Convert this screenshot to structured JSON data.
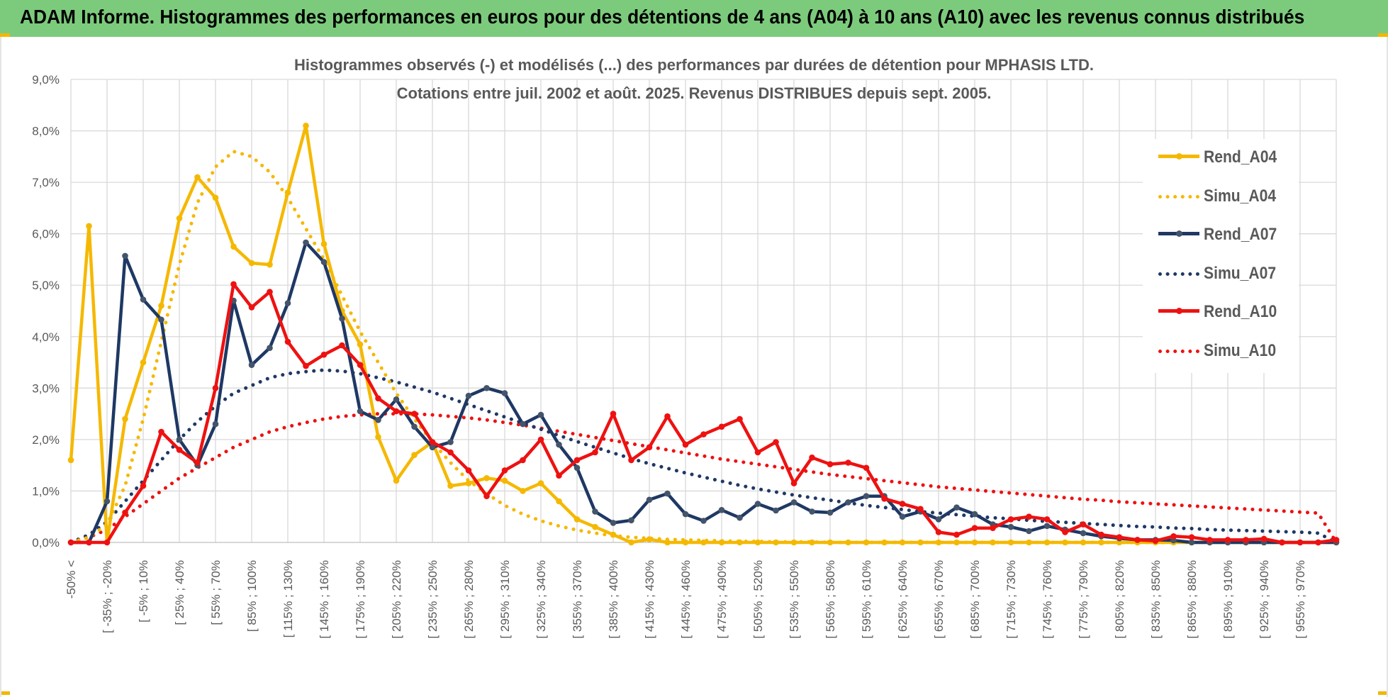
{
  "banner": {
    "title": "ADAM Informe. Histogrammes des performances en euros pour des détentions de 4 ans (A04) à 10 ans (A10) avec les revenus connus distribués",
    "background": "#7ccb7c",
    "accent": "#f2b705"
  },
  "chart_data": {
    "type": "line",
    "title": "Histogrammes observés (-) et modélisés (...) des performances par durées de détention pour MPHASIS LTD.",
    "subtitle": "Cotations entre juil. 2002 et août. 2025. Revenus DISTRIBUES depuis sept. 2005.",
    "xlabel": "",
    "ylabel": "",
    "ylim": [
      0,
      9
    ],
    "y_ticks": [
      "0,0%",
      "1,0%",
      "2,0%",
      "3,0%",
      "4,0%",
      "5,0%",
      "6,0%",
      "7,0%",
      "8,0%",
      "9,0%"
    ],
    "x_tick_labels": [
      "-50% <",
      "[ -35% ; -20%",
      "[ -5% ; 10%",
      "[ 25% ; 40%",
      "[ 55% ; 70%",
      "[ 85% ; 100%",
      "[ 115% ; 130%",
      "[ 145% ; 160%",
      "[ 175% ; 190%",
      "[ 205% ; 220%",
      "[ 235% ; 250%",
      "[ 265% ; 280%",
      "[ 295% ; 310%",
      "[ 325% ; 340%",
      "[ 355% ; 370%",
      "[ 385% ; 400%",
      "[ 415% ; 430%",
      "[ 445% ; 460%",
      "[ 475% ; 490%",
      "[ 505% ; 520%",
      "[ 535% ; 550%",
      "[ 565% ; 580%",
      "[ 595% ; 610%",
      "[ 625% ; 640%",
      "[ 655% ; 670%",
      "[ 685% ; 700%",
      "[ 715% ; 730%",
      "[ 745% ; 760%",
      "[ 775% ; 790%",
      "[ 805% ; 820%",
      "[ 835% ; 850%",
      "[ 865% ; 880%",
      "[ 895% ; 910%",
      "[ 925% ; 940%",
      "[ 955% ; 970%"
    ],
    "categories_count": 71,
    "grid": true,
    "legend_position": "right",
    "series": [
      {
        "name": "Rend_A04",
        "style": "solid",
        "color": "#f5b800",
        "values": [
          1.6,
          6.15,
          0.0,
          2.4,
          3.5,
          4.6,
          6.3,
          7.1,
          6.7,
          5.75,
          5.43,
          5.4,
          6.8,
          8.1,
          5.8,
          4.5,
          3.85,
          2.05,
          1.2,
          1.7,
          1.95,
          1.1,
          1.15,
          1.25,
          1.2,
          1.0,
          1.15,
          0.8,
          0.45,
          0.3,
          0.15,
          0.0,
          0.06,
          0.0,
          0.0,
          0.0,
          0.0,
          0.0,
          0.0,
          0.0,
          0.0,
          0.0,
          0.0,
          0.0,
          0.0,
          0.0,
          0.0,
          0.0,
          0.0,
          0.0,
          0.0,
          0.0,
          0.0,
          0.0,
          0.0,
          0.0,
          0.0,
          0.0,
          0.0,
          0.0,
          0.0,
          0.0,
          0.0,
          0.0,
          0.0,
          0.0,
          0.0,
          0.0,
          0.0,
          0.0,
          0.0
        ]
      },
      {
        "name": "Simu_A04",
        "style": "dotted",
        "color": "#f5b800",
        "values": [
          0.0,
          0.1,
          0.35,
          1.1,
          2.4,
          3.9,
          5.4,
          6.6,
          7.3,
          7.6,
          7.5,
          7.2,
          6.7,
          6.1,
          5.5,
          4.8,
          4.1,
          3.5,
          2.9,
          2.4,
          1.95,
          1.55,
          1.2,
          0.95,
          0.72,
          0.55,
          0.42,
          0.32,
          0.24,
          0.18,
          0.13,
          0.1,
          0.08,
          0.06,
          0.05,
          0.04,
          0.03,
          0.02,
          0.02,
          0.01,
          0.01,
          0.01,
          0.0,
          0.0,
          0.0,
          0.0,
          0.0,
          0.0,
          0.0,
          0.0,
          0.0,
          0.0,
          0.0,
          0.0,
          0.0,
          0.0,
          0.0,
          0.0,
          0.0,
          0.0,
          0.0,
          0.0,
          0.0,
          0.0,
          0.0,
          0.0,
          0.0,
          0.0,
          0.0,
          0.0,
          0.0
        ]
      },
      {
        "name": "Rend_A07",
        "style": "solid",
        "color": "#1f3864",
        "values": [
          0.0,
          0.0,
          0.8,
          5.57,
          4.72,
          4.33,
          2.0,
          1.5,
          2.3,
          4.7,
          3.45,
          3.78,
          4.65,
          5.83,
          5.45,
          4.35,
          2.55,
          2.38,
          2.78,
          2.25,
          1.85,
          1.95,
          2.85,
          3.0,
          2.9,
          2.3,
          2.48,
          1.9,
          1.45,
          0.6,
          0.38,
          0.43,
          0.83,
          0.95,
          0.55,
          0.42,
          0.63,
          0.48,
          0.75,
          0.62,
          0.78,
          0.6,
          0.58,
          0.78,
          0.9,
          0.9,
          0.5,
          0.6,
          0.45,
          0.68,
          0.55,
          0.35,
          0.3,
          0.22,
          0.32,
          0.25,
          0.18,
          0.12,
          0.08,
          0.05,
          0.05,
          0.04,
          0.0,
          0.0,
          0.0,
          0.0,
          0.0,
          0.0,
          0.0,
          0.0,
          0.0
        ]
      },
      {
        "name": "Simu_A07",
        "style": "dotted",
        "color": "#1f3864",
        "values": [
          0.0,
          0.15,
          0.4,
          0.8,
          1.2,
          1.6,
          2.0,
          2.35,
          2.65,
          2.9,
          3.05,
          3.2,
          3.28,
          3.32,
          3.35,
          3.33,
          3.28,
          3.2,
          3.12,
          3.02,
          2.92,
          2.8,
          2.68,
          2.56,
          2.44,
          2.32,
          2.2,
          2.08,
          1.96,
          1.85,
          1.74,
          1.63,
          1.53,
          1.44,
          1.35,
          1.27,
          1.19,
          1.11,
          1.04,
          0.98,
          0.92,
          0.87,
          0.82,
          0.77,
          0.72,
          0.68,
          0.64,
          0.6,
          0.57,
          0.54,
          0.51,
          0.48,
          0.46,
          0.43,
          0.41,
          0.39,
          0.37,
          0.35,
          0.33,
          0.31,
          0.3,
          0.28,
          0.27,
          0.25,
          0.24,
          0.23,
          0.22,
          0.21,
          0.2,
          0.18,
          0.0
        ]
      },
      {
        "name": "Rend_A10",
        "style": "solid",
        "color": "#ee1111",
        "values": [
          0.0,
          0.0,
          0.0,
          0.58,
          1.1,
          2.15,
          1.8,
          1.55,
          3.0,
          5.02,
          4.57,
          4.87,
          3.9,
          3.43,
          3.65,
          3.83,
          3.45,
          2.8,
          2.55,
          2.5,
          1.95,
          1.75,
          1.4,
          0.9,
          1.4,
          1.6,
          2.0,
          1.3,
          1.6,
          1.75,
          2.5,
          1.6,
          1.85,
          2.45,
          1.9,
          2.1,
          2.25,
          2.4,
          1.75,
          1.95,
          1.15,
          1.65,
          1.52,
          1.55,
          1.45,
          0.85,
          0.75,
          0.65,
          0.2,
          0.15,
          0.28,
          0.28,
          0.45,
          0.5,
          0.45,
          0.2,
          0.35,
          0.15,
          0.1,
          0.05,
          0.03,
          0.12,
          0.1,
          0.05,
          0.05,
          0.05,
          0.07,
          0.0,
          0.0,
          0.0,
          0.05
        ]
      },
      {
        "name": "Simu_A10",
        "style": "dotted",
        "color": "#ee1111",
        "values": [
          0.0,
          0.1,
          0.25,
          0.5,
          0.75,
          1.0,
          1.25,
          1.45,
          1.65,
          1.85,
          2.0,
          2.15,
          2.25,
          2.33,
          2.4,
          2.45,
          2.48,
          2.5,
          2.5,
          2.5,
          2.48,
          2.45,
          2.42,
          2.38,
          2.33,
          2.28,
          2.22,
          2.16,
          2.1,
          2.04,
          1.98,
          1.92,
          1.86,
          1.8,
          1.74,
          1.68,
          1.62,
          1.57,
          1.52,
          1.47,
          1.42,
          1.37,
          1.32,
          1.28,
          1.24,
          1.2,
          1.16,
          1.12,
          1.08,
          1.05,
          1.02,
          0.99,
          0.96,
          0.93,
          0.9,
          0.87,
          0.84,
          0.82,
          0.79,
          0.77,
          0.75,
          0.73,
          0.71,
          0.69,
          0.67,
          0.65,
          0.63,
          0.61,
          0.59,
          0.57,
          0.0
        ]
      }
    ]
  }
}
